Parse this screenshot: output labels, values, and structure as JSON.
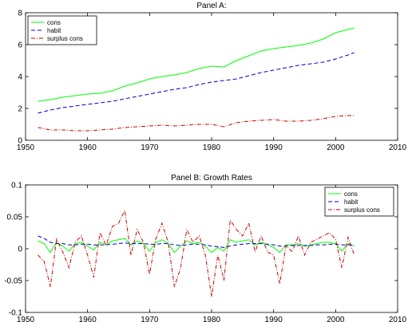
{
  "chart_data": [
    {
      "type": "line",
      "title": "Panel A:",
      "xlabel": "",
      "ylabel": "",
      "xlim": [
        1950,
        2010
      ],
      "ylim": [
        0,
        8
      ],
      "xticks": [
        "1950",
        "1960",
        "1970",
        "1980",
        "1990",
        "2000",
        "2010"
      ],
      "yticks": [
        "0",
        "2",
        "4",
        "6",
        "8"
      ],
      "grid": false,
      "legend_position": "top-left",
      "series": [
        {
          "name": "cons",
          "color": "#00ff00",
          "style": "solid",
          "x": [
            1952,
            1954,
            1956,
            1958,
            1960,
            1962,
            1964,
            1966,
            1968,
            1970,
            1972,
            1974,
            1976,
            1978,
            1980,
            1982,
            1984,
            1986,
            1988,
            1990,
            1992,
            1994,
            1996,
            1998,
            2000,
            2002,
            2003
          ],
          "y": [
            2.45,
            2.55,
            2.7,
            2.8,
            2.9,
            2.95,
            3.1,
            3.4,
            3.6,
            3.85,
            4.0,
            4.1,
            4.25,
            4.5,
            4.65,
            4.6,
            5.0,
            5.3,
            5.6,
            5.75,
            5.85,
            5.95,
            6.1,
            6.35,
            6.75,
            6.95,
            7.05
          ]
        },
        {
          "name": "habit",
          "color": "#0000cc",
          "style": "dashed",
          "x": [
            1952,
            1954,
            1956,
            1958,
            1960,
            1962,
            1964,
            1966,
            1968,
            1970,
            1972,
            1974,
            1976,
            1978,
            1980,
            1982,
            1984,
            1986,
            1988,
            1990,
            1992,
            1994,
            1996,
            1998,
            2000,
            2002,
            2003
          ],
          "y": [
            1.7,
            1.9,
            2.05,
            2.15,
            2.25,
            2.35,
            2.45,
            2.6,
            2.75,
            2.9,
            3.05,
            3.2,
            3.3,
            3.5,
            3.65,
            3.75,
            3.85,
            4.05,
            4.25,
            4.4,
            4.55,
            4.7,
            4.8,
            4.9,
            5.1,
            5.35,
            5.5
          ]
        },
        {
          "name": "surplus cons",
          "color": "#cc0000",
          "style": "dashdot",
          "x": [
            1952,
            1954,
            1956,
            1958,
            1960,
            1962,
            1964,
            1966,
            1968,
            1970,
            1972,
            1974,
            1976,
            1978,
            1980,
            1982,
            1984,
            1986,
            1988,
            1990,
            1992,
            1994,
            1996,
            1998,
            2000,
            2002,
            2003
          ],
          "y": [
            0.8,
            0.65,
            0.65,
            0.6,
            0.6,
            0.65,
            0.7,
            0.8,
            0.85,
            0.9,
            0.95,
            0.9,
            0.95,
            1.0,
            1.0,
            0.85,
            1.1,
            1.2,
            1.25,
            1.3,
            1.2,
            1.2,
            1.25,
            1.35,
            1.5,
            1.55,
            1.55
          ]
        }
      ]
    },
    {
      "type": "line",
      "title": "Panel B: Growth Rates",
      "xlabel": "",
      "ylabel": "",
      "xlim": [
        1950,
        2010
      ],
      "ylim": [
        -0.1,
        0.1
      ],
      "xticks": [
        "1950",
        "1960",
        "1970",
        "1980",
        "1990",
        "2000",
        "2010"
      ],
      "yticks": [
        "-0.1",
        "-0.05",
        "0",
        "0.05",
        "0.1"
      ],
      "grid": false,
      "legend_position": "top-right",
      "series": [
        {
          "name": "cons",
          "color": "#00ff00",
          "style": "solid",
          "x": [
            1952,
            1953,
            1954,
            1955,
            1956,
            1957,
            1958,
            1959,
            1960,
            1961,
            1962,
            1963,
            1964,
            1965,
            1966,
            1967,
            1968,
            1969,
            1970,
            1971,
            1972,
            1973,
            1974,
            1975,
            1976,
            1977,
            1978,
            1979,
            1980,
            1981,
            1982,
            1983,
            1984,
            1985,
            1986,
            1987,
            1988,
            1989,
            1990,
            1991,
            1992,
            1993,
            1994,
            1995,
            1996,
            1997,
            1998,
            1999,
            2000,
            2001,
            2002,
            2003
          ],
          "y": [
            0.012,
            0.008,
            -0.006,
            0.01,
            0.004,
            -0.004,
            0.008,
            0.01,
            0.004,
            -0.002,
            0.01,
            0.006,
            0.012,
            0.014,
            0.016,
            0.006,
            0.012,
            0.008,
            -0.004,
            0.01,
            0.014,
            0.008,
            -0.006,
            0.004,
            0.012,
            0.008,
            0.01,
            0.004,
            -0.006,
            0.002,
            -0.004,
            0.014,
            0.01,
            0.012,
            0.014,
            0.006,
            0.01,
            0.006,
            0.002,
            -0.006,
            0.006,
            0.006,
            0.008,
            0.004,
            0.006,
            0.008,
            0.01,
            0.01,
            0.008,
            -0.004,
            0.008,
            0.004
          ]
        },
        {
          "name": "habit",
          "color": "#0000cc",
          "style": "dashed",
          "x": [
            1952,
            1953,
            1954,
            1955,
            1956,
            1957,
            1958,
            1959,
            1960,
            1961,
            1962,
            1963,
            1964,
            1965,
            1966,
            1967,
            1968,
            1969,
            1970,
            1971,
            1972,
            1973,
            1974,
            1975,
            1976,
            1977,
            1978,
            1979,
            1980,
            1981,
            1982,
            1983,
            1984,
            1985,
            1986,
            1987,
            1988,
            1989,
            1990,
            1991,
            1992,
            1993,
            1994,
            1995,
            1996,
            1997,
            1998,
            1999,
            2000,
            2001,
            2002,
            2003
          ],
          "y": [
            0.02,
            0.016,
            0.01,
            0.008,
            0.008,
            0.006,
            0.006,
            0.007,
            0.007,
            0.006,
            0.006,
            0.006,
            0.007,
            0.008,
            0.009,
            0.008,
            0.008,
            0.008,
            0.007,
            0.007,
            0.008,
            0.008,
            0.006,
            0.005,
            0.006,
            0.007,
            0.007,
            0.006,
            0.004,
            0.003,
            0.002,
            0.004,
            0.006,
            0.007,
            0.008,
            0.008,
            0.008,
            0.007,
            0.006,
            0.004,
            0.004,
            0.005,
            0.005,
            0.005,
            0.005,
            0.006,
            0.006,
            0.007,
            0.007,
            0.006,
            0.006,
            0.006
          ]
        },
        {
          "name": "surplus cons",
          "color": "#cc0000",
          "style": "dashdot",
          "x": [
            1952,
            1953,
            1954,
            1955,
            1956,
            1957,
            1958,
            1959,
            1960,
            1961,
            1962,
            1963,
            1964,
            1965,
            1966,
            1967,
            1968,
            1969,
            1970,
            1971,
            1972,
            1973,
            1974,
            1975,
            1976,
            1977,
            1978,
            1979,
            1980,
            1981,
            1982,
            1983,
            1984,
            1985,
            1986,
            1987,
            1988,
            1989,
            1990,
            1991,
            1992,
            1993,
            1994,
            1995,
            1996,
            1997,
            1998,
            1999,
            2000,
            2001,
            2002,
            2003
          ],
          "y": [
            -0.01,
            -0.02,
            -0.06,
            0.015,
            -0.005,
            -0.03,
            0.01,
            0.02,
            -0.01,
            -0.045,
            0.025,
            0.005,
            0.035,
            0.04,
            0.06,
            -0.01,
            0.03,
            0.01,
            -0.04,
            0.015,
            0.04,
            0.01,
            -0.06,
            -0.03,
            0.03,
            0.01,
            0.02,
            -0.01,
            -0.075,
            -0.01,
            -0.05,
            0.045,
            0.03,
            0.02,
            0.04,
            -0.005,
            0.02,
            -0.005,
            -0.01,
            -0.055,
            0.005,
            -0.005,
            0.02,
            -0.01,
            0.01,
            0.015,
            0.02,
            0.025,
            0.015,
            -0.03,
            0.018,
            -0.01
          ]
        }
      ]
    }
  ]
}
